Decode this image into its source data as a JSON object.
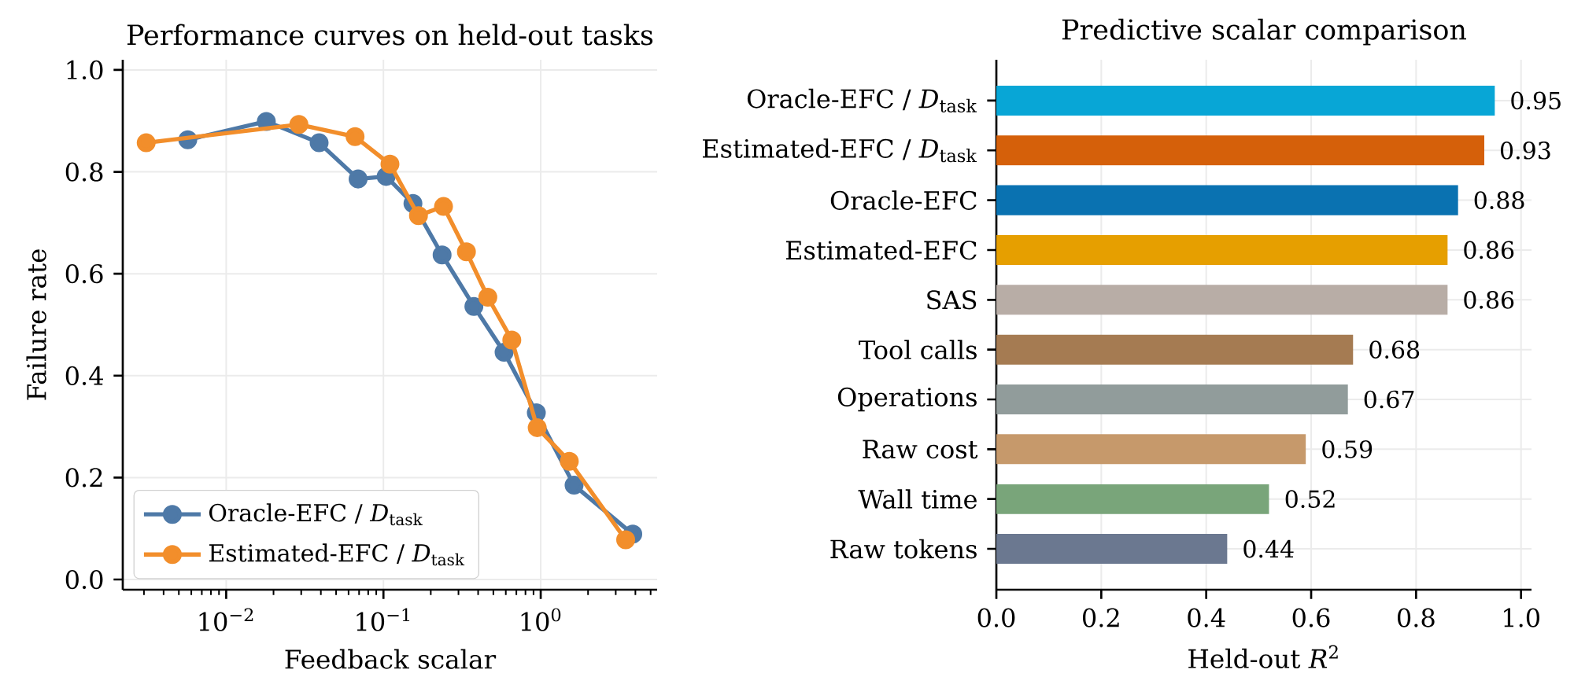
{
  "chart_data": [
    {
      "type": "line",
      "title": "Performance curves on held-out tasks",
      "xlabel": "Feedback scalar",
      "ylabel": "Failure rate",
      "log": "x",
      "xlim": [
        0.0022,
        5.5
      ],
      "ylim": [
        -0.02,
        1.02
      ],
      "xticks": [
        {
          "value": 0.003,
          "label": null
        },
        {
          "value": 0.004,
          "label": null
        },
        {
          "value": 0.005,
          "label": null
        },
        {
          "value": 0.006,
          "label": null
        },
        {
          "value": 0.007,
          "label": null
        },
        {
          "value": 0.008,
          "label": null
        },
        {
          "value": 0.009,
          "label": null
        },
        {
          "value": 0.01,
          "label": "10$^{−2}$"
        },
        {
          "value": 0.02,
          "label": null
        },
        {
          "value": 0.03,
          "label": null
        },
        {
          "value": 0.04,
          "label": null
        },
        {
          "value": 0.05,
          "label": null
        },
        {
          "value": 0.06,
          "label": null
        },
        {
          "value": 0.07,
          "label": null
        },
        {
          "value": 0.08,
          "label": null
        },
        {
          "value": 0.09,
          "label": null
        },
        {
          "value": 0.1,
          "label": "10$^{−1}$"
        },
        {
          "value": 0.2,
          "label": null
        },
        {
          "value": 0.3,
          "label": null
        },
        {
          "value": 0.4,
          "label": null
        },
        {
          "value": 0.5,
          "label": null
        },
        {
          "value": 0.6,
          "label": null
        },
        {
          "value": 0.7,
          "label": null
        },
        {
          "value": 0.8,
          "label": null
        },
        {
          "value": 0.9,
          "label": null
        },
        {
          "value": 1,
          "label": "10$^{0}$"
        },
        {
          "value": 2,
          "label": null
        },
        {
          "value": 3,
          "label": null
        },
        {
          "value": 4,
          "label": null
        },
        {
          "value": 5,
          "label": null
        }
      ],
      "yticks": [
        {
          "value": 0,
          "label": "0.0"
        },
        0.2,
        0.4,
        0.6,
        0.8,
        {
          "value": 1,
          "label": "1.0"
        }
      ],
      "grid": true,
      "legend": "bottom left",
      "marker": "circle",
      "line_style": "solid",
      "series": [
        {
          "name": "Oracle-EFC / *D*$_{task}$",
          "color": "#4e79a7",
          "x": [
            0.0057,
            0.018,
            0.039,
            0.069,
            0.104,
            0.154,
            0.236,
            0.376,
            0.585,
            0.938,
            1.63,
            3.85
          ],
          "values": [
            0.863,
            0.899,
            0.857,
            0.786,
            0.791,
            0.738,
            0.637,
            0.536,
            0.446,
            0.327,
            0.185,
            0.089
          ]
        },
        {
          "name": "Estimated-EFC / *D*$_{task}$",
          "color": "#f28e2b",
          "x": [
            0.0031,
            0.029,
            0.066,
            0.11,
            0.167,
            0.241,
            0.337,
            0.461,
            0.655,
            0.95,
            1.52,
            3.47
          ],
          "values": [
            0.857,
            0.893,
            0.869,
            0.815,
            0.714,
            0.732,
            0.643,
            0.554,
            0.47,
            0.298,
            0.232,
            0.078
          ]
        }
      ]
    },
    {
      "type": "bar",
      "orientation": "horizontal",
      "title": "Predictive scalar comparison",
      "xlabel": "Held-out *R*$^{2}$",
      "categories": [
        "Oracle-EFC / *D*$_{task}$",
        "Estimated-EFC / *D*$_{task}$",
        "Oracle-EFC",
        "Estimated-EFC",
        "SAS",
        "Tool calls",
        "Operations",
        "Raw cost",
        "Wall time",
        "Raw tokens"
      ],
      "values": [
        0.95,
        0.93,
        0.88,
        0.86,
        0.86,
        0.68,
        0.67,
        0.59,
        0.52,
        0.44
      ],
      "colors": [
        "#08a6d6",
        "#d5600a",
        "#0a72b1",
        "#e69f00",
        "#b8ada6",
        "#a57b52",
        "#919c9b",
        "#c6996b",
        "#79a57a",
        "#6b7890"
      ],
      "xlim": [
        0,
        1.02
      ],
      "xticks": [
        {
          "value": 0,
          "label": "0.0"
        },
        0.2,
        0.4,
        0.6,
        0.8,
        {
          "value": 1,
          "label": "1.0"
        }
      ],
      "grid": true,
      "data_labels": true
    }
  ]
}
